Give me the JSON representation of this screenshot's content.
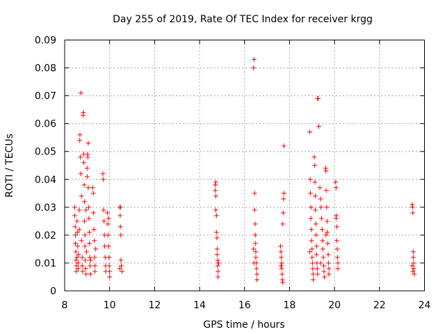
{
  "chart_data": {
    "type": "scatter",
    "title": "Day 255 of 2019, Rate Of TEC Index for receiver krgg",
    "xlabel": "GPS time / hours",
    "ylabel": "ROTI / TECUs",
    "xlim": [
      8,
      24
    ],
    "ylim": [
      0,
      0.09
    ],
    "xticks": [
      "8",
      "10",
      "12",
      "14",
      "16",
      "18",
      "20",
      "22",
      "24"
    ],
    "xtick_values": [
      8,
      10,
      12,
      14,
      16,
      18,
      20,
      22,
      24
    ],
    "yticks": [
      "0",
      "0.01",
      "0.02",
      "0.03",
      "0.04",
      "0.05",
      "0.06",
      "0.07",
      "0.08",
      "0.09"
    ],
    "ytick_values": [
      0,
      0.01,
      0.02,
      0.03,
      0.04,
      0.05,
      0.06,
      0.07,
      0.08,
      0.09
    ],
    "grid": true,
    "marker": "+",
    "color": "#ff0000",
    "series": [
      {
        "name": "ROTI",
        "points": [
          [
            8.45,
            0.03
          ],
          [
            8.45,
            0.027
          ],
          [
            8.47,
            0.023
          ],
          [
            8.48,
            0.02
          ],
          [
            8.48,
            0.017
          ],
          [
            8.5,
            0.014
          ],
          [
            8.5,
            0.011
          ],
          [
            8.52,
            0.009
          ],
          [
            8.52,
            0.007
          ],
          [
            8.55,
            0.012
          ],
          [
            8.55,
            0.025
          ],
          [
            8.57,
            0.021
          ],
          [
            8.58,
            0.016
          ],
          [
            8.6,
            0.01
          ],
          [
            8.6,
            0.008
          ],
          [
            8.62,
            0.013
          ],
          [
            8.65,
            0.029
          ],
          [
            8.65,
            0.022
          ],
          [
            8.67,
            0.054
          ],
          [
            8.68,
            0.056
          ],
          [
            8.7,
            0.048
          ],
          [
            8.72,
            0.071
          ],
          [
            8.72,
            0.042
          ],
          [
            8.75,
            0.034
          ],
          [
            8.75,
            0.018
          ],
          [
            8.78,
            0.012
          ],
          [
            8.78,
            0.009
          ],
          [
            8.8,
            0.007
          ],
          [
            8.82,
            0.063
          ],
          [
            8.83,
            0.064
          ],
          [
            8.85,
            0.049
          ],
          [
            8.85,
            0.046
          ],
          [
            8.87,
            0.038
          ],
          [
            8.88,
            0.032
          ],
          [
            8.88,
            0.025
          ],
          [
            8.9,
            0.02
          ],
          [
            8.9,
            0.016
          ],
          [
            8.92,
            0.011
          ],
          [
            8.93,
            0.008
          ],
          [
            8.95,
            0.006
          ],
          [
            8.95,
            0.029
          ],
          [
            8.97,
            0.014
          ],
          [
            9.0,
            0.044
          ],
          [
            9.0,
            0.041
          ],
          [
            9.02,
            0.049
          ],
          [
            9.03,
            0.048
          ],
          [
            9.05,
            0.053
          ],
          [
            9.05,
            0.037
          ],
          [
            9.07,
            0.03
          ],
          [
            9.08,
            0.026
          ],
          [
            9.1,
            0.021
          ],
          [
            9.1,
            0.017
          ],
          [
            9.12,
            0.012
          ],
          [
            9.13,
            0.009
          ],
          [
            9.15,
            0.006
          ],
          [
            9.15,
            0.011
          ],
          [
            9.25,
            0.037
          ],
          [
            9.27,
            0.035
          ],
          [
            9.28,
            0.028
          ],
          [
            9.3,
            0.022
          ],
          [
            9.32,
            0.018
          ],
          [
            9.33,
            0.012
          ],
          [
            9.35,
            0.009
          ],
          [
            9.35,
            0.007
          ],
          [
            9.38,
            0.015
          ],
          [
            9.7,
            0.042
          ],
          [
            9.72,
            0.04
          ],
          [
            9.73,
            0.029
          ],
          [
            9.75,
            0.025
          ],
          [
            9.77,
            0.02
          ],
          [
            9.78,
            0.016
          ],
          [
            9.8,
            0.012
          ],
          [
            9.82,
            0.009
          ],
          [
            9.83,
            0.007
          ],
          [
            9.9,
            0.028
          ],
          [
            9.92,
            0.024
          ],
          [
            9.93,
            0.02
          ],
          [
            9.95,
            0.016
          ],
          [
            9.97,
            0.012
          ],
          [
            9.98,
            0.009
          ],
          [
            10.0,
            0.007
          ],
          [
            10.0,
            0.005
          ],
          [
            9.95,
            0.026
          ],
          [
            10.45,
            0.03
          ],
          [
            10.47,
            0.027
          ],
          [
            10.48,
            0.023
          ],
          [
            10.5,
            0.02
          ],
          [
            10.5,
            0.011
          ],
          [
            10.52,
            0.009
          ],
          [
            10.55,
            0.007
          ],
          [
            10.45,
            0.008
          ],
          [
            10.48,
            0.03
          ],
          [
            14.7,
            0.038
          ],
          [
            14.7,
            0.036
          ],
          [
            14.72,
            0.034
          ],
          [
            14.72,
            0.029
          ],
          [
            14.75,
            0.027
          ],
          [
            14.75,
            0.021
          ],
          [
            14.77,
            0.019
          ],
          [
            14.78,
            0.015
          ],
          [
            14.78,
            0.013
          ],
          [
            14.8,
            0.011
          ],
          [
            14.8,
            0.009
          ],
          [
            14.82,
            0.007
          ],
          [
            14.82,
            0.005
          ],
          [
            14.85,
            0.01
          ],
          [
            14.72,
            0.039
          ],
          [
            16.4,
            0.08
          ],
          [
            16.42,
            0.083
          ],
          [
            16.45,
            0.035
          ],
          [
            16.45,
            0.029
          ],
          [
            16.47,
            0.024
          ],
          [
            16.48,
            0.02
          ],
          [
            16.48,
            0.017
          ],
          [
            16.5,
            0.014
          ],
          [
            16.5,
            0.012
          ],
          [
            16.52,
            0.01
          ],
          [
            16.53,
            0.008
          ],
          [
            16.55,
            0.006
          ],
          [
            16.55,
            0.004
          ],
          [
            16.4,
            0.015
          ],
          [
            16.42,
            0.01
          ],
          [
            17.6,
            0.016
          ],
          [
            17.62,
            0.014
          ],
          [
            17.63,
            0.012
          ],
          [
            17.65,
            0.01
          ],
          [
            17.65,
            0.008
          ],
          [
            17.67,
            0.006
          ],
          [
            17.68,
            0.004
          ],
          [
            17.7,
            0.003
          ],
          [
            17.7,
            0.024
          ],
          [
            17.72,
            0.028
          ],
          [
            17.73,
            0.033
          ],
          [
            17.75,
            0.035
          ],
          [
            17.75,
            0.052
          ],
          [
            17.62,
            0.009
          ],
          [
            18.9,
            0.057
          ],
          [
            18.92,
            0.04
          ],
          [
            18.93,
            0.035
          ],
          [
            18.95,
            0.03
          ],
          [
            18.95,
            0.026
          ],
          [
            18.97,
            0.022
          ],
          [
            18.98,
            0.018
          ],
          [
            19.0,
            0.015
          ],
          [
            19.0,
            0.012
          ],
          [
            19.02,
            0.01
          ],
          [
            19.03,
            0.008
          ],
          [
            19.05,
            0.006
          ],
          [
            19.05,
            0.004
          ],
          [
            18.9,
            0.014
          ],
          [
            19.1,
            0.048
          ],
          [
            19.12,
            0.045
          ],
          [
            19.13,
            0.039
          ],
          [
            19.15,
            0.034
          ],
          [
            19.15,
            0.029
          ],
          [
            19.17,
            0.024
          ],
          [
            19.18,
            0.02
          ],
          [
            19.2,
            0.016
          ],
          [
            19.2,
            0.013
          ],
          [
            19.22,
            0.01
          ],
          [
            19.23,
            0.008
          ],
          [
            19.25,
            0.006
          ],
          [
            19.25,
            0.069
          ],
          [
            19.27,
            0.069
          ],
          [
            19.3,
            0.059
          ],
          [
            19.35,
            0.037
          ],
          [
            19.38,
            0.033
          ],
          [
            19.4,
            0.03
          ],
          [
            19.42,
            0.026
          ],
          [
            19.45,
            0.022
          ],
          [
            19.47,
            0.018
          ],
          [
            19.48,
            0.015
          ],
          [
            19.5,
            0.012
          ],
          [
            19.52,
            0.009
          ],
          [
            19.53,
            0.007
          ],
          [
            19.55,
            0.005
          ],
          [
            19.38,
            0.01
          ],
          [
            19.6,
            0.044
          ],
          [
            19.62,
            0.043
          ],
          [
            19.63,
            0.036
          ],
          [
            19.65,
            0.03
          ],
          [
            19.67,
            0.025
          ],
          [
            19.68,
            0.021
          ],
          [
            19.7,
            0.017
          ],
          [
            19.72,
            0.013
          ],
          [
            19.73,
            0.01
          ],
          [
            19.75,
            0.008
          ],
          [
            19.75,
            0.006
          ],
          [
            19.62,
            0.02
          ],
          [
            20.05,
            0.039
          ],
          [
            20.07,
            0.037
          ],
          [
            20.08,
            0.027
          ],
          [
            20.1,
            0.023
          ],
          [
            20.1,
            0.018
          ],
          [
            20.12,
            0.015
          ],
          [
            20.13,
            0.012
          ],
          [
            20.15,
            0.01
          ],
          [
            20.15,
            0.008
          ],
          [
            20.07,
            0.026
          ],
          [
            23.45,
            0.031
          ],
          [
            23.47,
            0.03
          ],
          [
            23.48,
            0.028
          ],
          [
            23.5,
            0.014
          ],
          [
            23.5,
            0.012
          ],
          [
            23.52,
            0.01
          ],
          [
            23.53,
            0.008
          ],
          [
            23.55,
            0.006
          ],
          [
            23.48,
            0.007
          ],
          [
            23.45,
            0.009
          ]
        ]
      }
    ]
  }
}
